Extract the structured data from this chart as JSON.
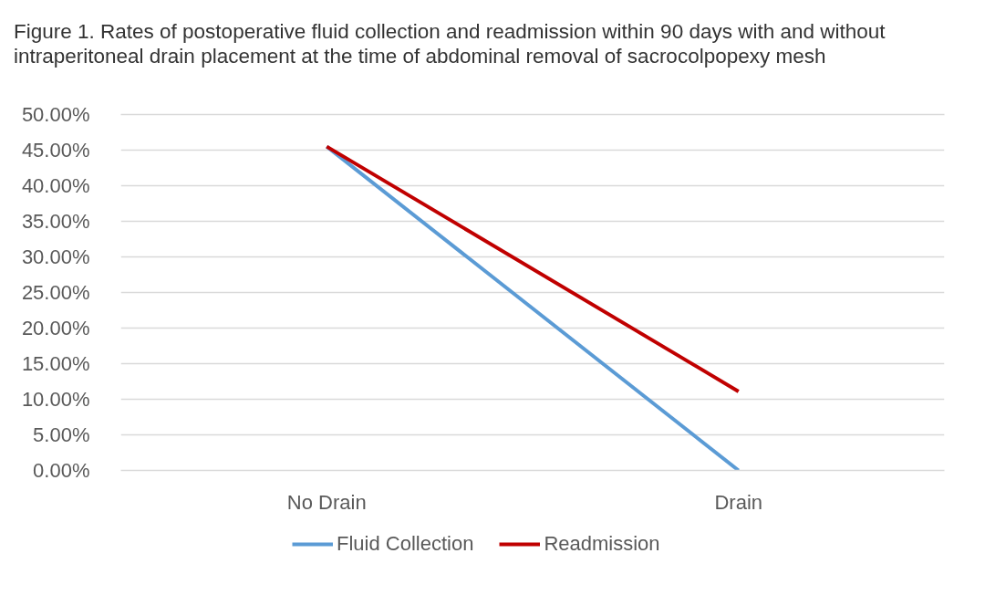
{
  "chart_data": {
    "type": "line",
    "title": "Figure 1. Rates of postoperative fluid collection and readmission within 90 days with and without intraperitoneal drain placement at the time of abdominal removal of sacrocolpopexy mesh",
    "categories": [
      "No Drain",
      "Drain"
    ],
    "series": [
      {
        "name": "Fluid Collection",
        "color": "#5b9bd5",
        "values": [
          45.5,
          0
        ]
      },
      {
        "name": "Readmission",
        "color": "#c00000",
        "values": [
          45.5,
          11.1
        ]
      }
    ],
    "ylim": [
      0,
      50
    ],
    "yticks": [
      {
        "value": 0,
        "label": "0.00%"
      },
      {
        "value": 5,
        "label": "5.00%"
      },
      {
        "value": 10,
        "label": "10.00%"
      },
      {
        "value": 15,
        "label": "15.00%"
      },
      {
        "value": 20,
        "label": "20.00%"
      },
      {
        "value": 25,
        "label": "25.00%"
      },
      {
        "value": 30,
        "label": "30.00%"
      },
      {
        "value": 35,
        "label": "35.00%"
      },
      {
        "value": 40,
        "label": "40.00%"
      },
      {
        "value": 45,
        "label": "45.00%"
      },
      {
        "value": 50,
        "label": "50.00%"
      }
    ],
    "grid": "y",
    "legend": "bottom"
  }
}
